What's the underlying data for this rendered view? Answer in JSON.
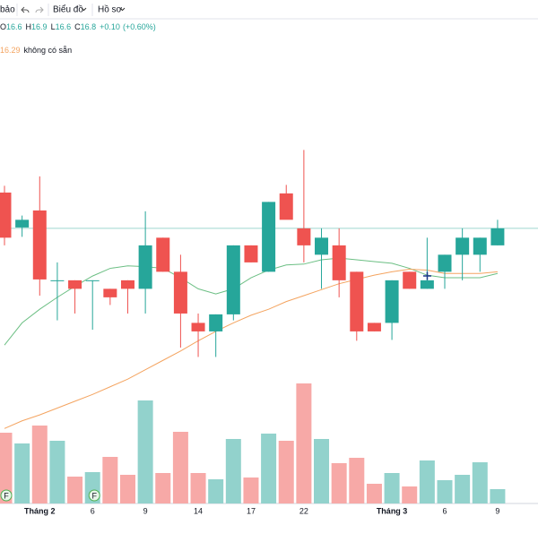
{
  "toolbar": {
    "items": [
      "bảo",
      "Biểu đồ",
      "Hồ sơ"
    ]
  },
  "chart_data": {
    "type": "candlestick",
    "legend": {
      "labels": [
        "O",
        "H",
        "L",
        "C"
      ],
      "change": "+0.10",
      "change_pct": "(+0.60%)",
      "ma_note": "không có sẵn"
    },
    "categories": [
      null,
      null,
      "Tháng 2",
      null,
      null,
      "6",
      null,
      null,
      "9",
      null,
      null,
      "14",
      null,
      null,
      "17",
      null,
      null,
      "22",
      null,
      null,
      null,
      null,
      "Tháng 3",
      null,
      null,
      "6",
      null,
      null,
      "9"
    ],
    "open": [
      17.22,
      16.81,
      17.01,
      16.19,
      16.19,
      16.19,
      16.09,
      16.19,
      16.09,
      16.69,
      16.29,
      15.69,
      15.59,
      15.79,
      16.6,
      16.29,
      17.21,
      16.8,
      16.49,
      16.6,
      16.29,
      15.69,
      15.69,
      16.29,
      16.09,
      16.29,
      16.49,
      16.49,
      16.6
    ],
    "high": [
      17.3,
      16.95,
      17.41,
      16.4,
      16.19,
      16.19,
      16.09,
      16.19,
      17.0,
      16.69,
      16.49,
      15.8,
      15.79,
      16.6,
      16.6,
      17.11,
      17.31,
      17.72,
      16.8,
      16.8,
      16.29,
      15.69,
      16.19,
      16.29,
      16.69,
      16.49,
      16.8,
      16.69,
      16.9
    ],
    "low": [
      16.6,
      16.7,
      16.01,
      15.72,
      15.8,
      15.61,
      15.9,
      15.8,
      15.8,
      16.29,
      15.4,
      15.29,
      15.29,
      15.72,
      16.4,
      16.29,
      16.91,
      16.4,
      16.09,
      15.99,
      15.48,
      15.59,
      15.49,
      16.09,
      16.09,
      16.09,
      16.19,
      16.29,
      16.6
    ],
    "close": [
      16.69,
      16.9,
      16.2,
      16.19,
      16.09,
      16.19,
      15.99,
      16.09,
      16.6,
      16.29,
      15.8,
      15.59,
      15.79,
      16.6,
      16.4,
      17.11,
      16.9,
      16.6,
      16.69,
      16.19,
      15.59,
      15.59,
      16.19,
      16.09,
      16.19,
      16.49,
      16.69,
      16.69,
      16.8
    ],
    "up_color": "#26a69a",
    "down_color": "#ef5350",
    "up_volume_color": "#92d2cc",
    "down_volume_color": "#f7a9a7",
    "ylim": [
      13.57,
      19.27
    ],
    "ma": [
      {
        "color": "#6cbf84",
        "values": [
          15.43,
          15.69,
          15.85,
          15.99,
          16.12,
          16.24,
          16.33,
          16.36,
          16.35,
          16.33,
          16.22,
          16.09,
          16.03,
          16.09,
          16.22,
          16.31,
          16.37,
          16.38,
          16.43,
          16.45,
          16.43,
          16.41,
          16.39,
          16.33,
          16.25,
          16.22,
          16.22,
          16.22,
          16.27
        ]
      },
      {
        "color": "#f4a460",
        "values": [
          14.45,
          14.54,
          14.61,
          14.69,
          14.77,
          14.85,
          14.94,
          15.03,
          15.14,
          15.25,
          15.36,
          15.48,
          15.59,
          15.69,
          15.78,
          15.85,
          15.94,
          16.01,
          16.08,
          16.15,
          16.2,
          16.25,
          16.29,
          16.32,
          16.31,
          16.27,
          16.27,
          16.27,
          16.29
        ]
      }
    ],
    "volume": {
      "values": [
        79,
        67,
        87,
        70,
        30,
        35,
        52,
        32,
        115,
        34,
        80,
        34,
        27,
        72,
        29,
        78,
        70,
        134,
        72,
        45,
        51,
        22,
        34,
        19,
        48,
        26,
        32,
        46,
        16
      ],
      "ylim": [
        0,
        150
      ]
    },
    "events": [
      {
        "index": 0,
        "label": "F"
      },
      {
        "index": 5,
        "label": "F"
      }
    ]
  }
}
